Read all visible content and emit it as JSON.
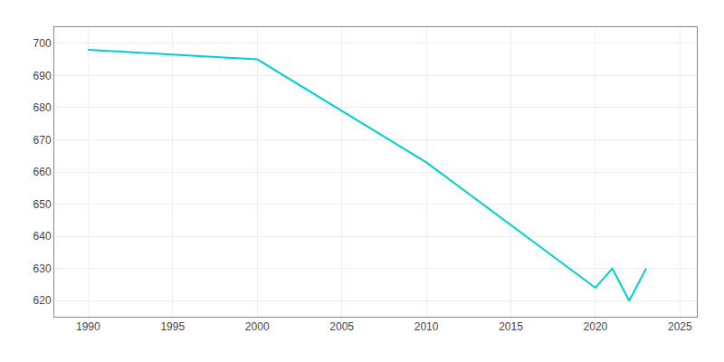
{
  "chart_data": {
    "type": "line",
    "x": [
      1990,
      2000,
      2010,
      2020,
      2021,
      2022,
      2023
    ],
    "values": [
      698,
      695,
      663,
      624,
      630,
      620,
      630
    ],
    "color": "#00CED1",
    "xlim": [
      1988,
      2026
    ],
    "xticks": [
      1990,
      1995,
      2000,
      2005,
      2010,
      2015,
      2020,
      2025
    ],
    "ylim": [
      615,
      705
    ],
    "yticks": [
      620,
      630,
      640,
      650,
      660,
      670,
      680,
      690,
      700
    ],
    "grid": true
  }
}
